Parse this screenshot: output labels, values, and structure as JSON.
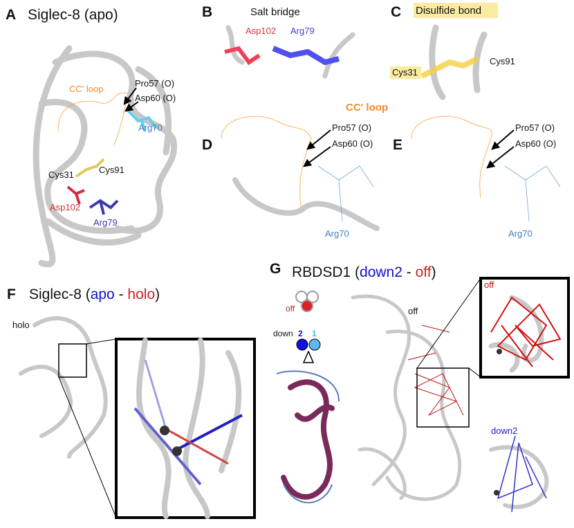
{
  "panel_a": {
    "letter": "A",
    "title": "Siglec-8 (apo)",
    "labels": [
      "CC' loop",
      "Pro57 (O)",
      "Asp60 (O)",
      "Arg70",
      "Cys31",
      "Cys91",
      "Asp102",
      "Arg79"
    ]
  },
  "panel_b": {
    "letter": "B",
    "title": "Salt bridge",
    "labels": [
      "Asp102",
      "Arg79"
    ]
  },
  "panel_c": {
    "letter": "C",
    "title": "Disulfide bond",
    "labels": [
      "Cys31",
      "Cys91"
    ]
  },
  "shared_label": "CC' loop",
  "panel_d": {
    "letter": "D",
    "labels": [
      "Pro57 (O)",
      "Asp60 (O)",
      "Arg70"
    ]
  },
  "panel_e": {
    "letter": "E",
    "labels": [
      "Pro57 (O)",
      "Asp60 (O)",
      "Arg70"
    ]
  },
  "panel_f": {
    "letter": "F",
    "title_parts": [
      "Siglec-8 (",
      "apo",
      " - ",
      "holo",
      ")"
    ],
    "labels": [
      "holo"
    ]
  },
  "panel_g": {
    "letter": "G",
    "title_parts": [
      "RBDSD1 (",
      "down2",
      " - ",
      "off",
      ")"
    ],
    "legend": {
      "off": "off",
      "down": "down",
      "down_a": "2",
      "down_b": "1"
    },
    "labels": [
      "off",
      "off",
      "down2"
    ]
  }
}
